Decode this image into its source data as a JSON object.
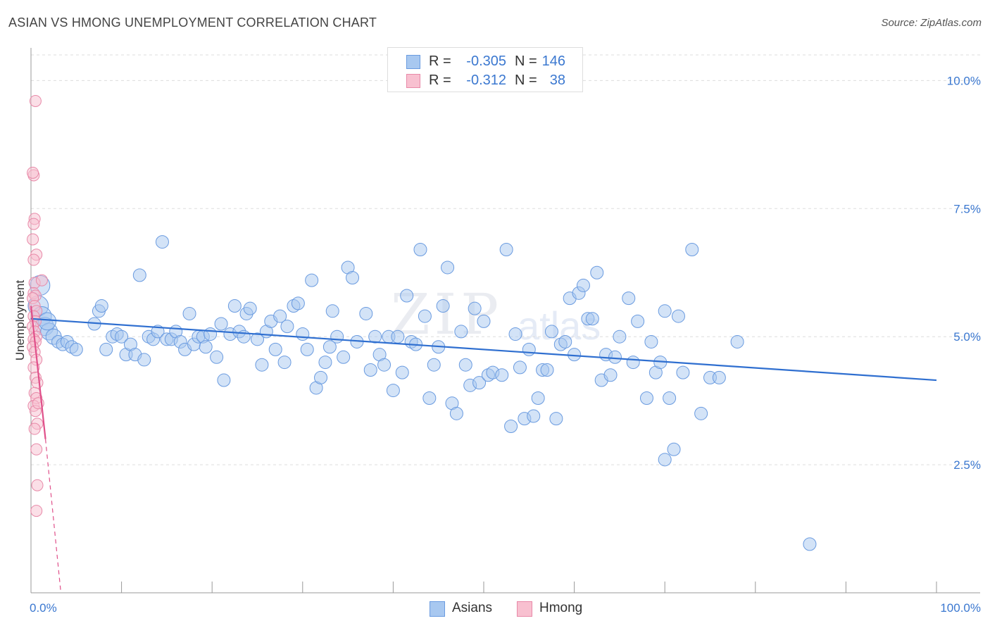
{
  "title": "ASIAN VS HMONG UNEMPLOYMENT CORRELATION CHART",
  "source": "Source: ZipAtlas.com",
  "watermark": {
    "main": "ZIP",
    "sub": "atlas"
  },
  "legend": {
    "rows": [
      {
        "r_label": "R =",
        "r": "-0.305",
        "n_label": "N =",
        "n": "146",
        "color": "#a8c8f0",
        "border": "#6a9be0"
      },
      {
        "r_label": "R =",
        "r": "-0.312",
        "n_label": "N =",
        "n": "38",
        "color": "#f8c0d0",
        "border": "#e889a8"
      }
    ]
  },
  "bottom_legend": [
    {
      "label": "Asians",
      "color": "#a8c8f0",
      "border": "#6a9be0"
    },
    {
      "label": "Hmong",
      "color": "#f8c0d0",
      "border": "#e889a8"
    }
  ],
  "chart_data": {
    "type": "scatter",
    "title": "ASIAN VS HMONG UNEMPLOYMENT CORRELATION CHART",
    "ylabel": "Unemployment",
    "xlabel": "",
    "xlim": [
      0,
      100
    ],
    "ylim": [
      0,
      10.5
    ],
    "x_tick_labels": [
      "0.0%",
      "100.0%"
    ],
    "y_ticks": [
      2.5,
      5.0,
      7.5,
      10.0
    ],
    "y_tick_labels": [
      "2.5%",
      "5.0%",
      "7.5%",
      "10.0%"
    ],
    "grid": true,
    "legend_position": "top-center",
    "colors": {
      "asians": "#6a9be0",
      "asians_line": "#2f6fd0",
      "hmong": "#e889a8",
      "hmong_line": "#e0508a"
    },
    "series": [
      {
        "name": "Asians",
        "trend": {
          "x": [
            0,
            100
          ],
          "y": [
            5.35,
            4.15
          ]
        },
        "points": [
          [
            0.8,
            5.6
          ],
          [
            1.2,
            5.4
          ],
          [
            1.5,
            5.2
          ],
          [
            2.0,
            5.1
          ],
          [
            2.5,
            5.0
          ],
          [
            3.0,
            4.9
          ],
          [
            3.5,
            4.85
          ],
          [
            4.0,
            4.9
          ],
          [
            4.5,
            4.8
          ],
          [
            5.0,
            4.75
          ],
          [
            1.0,
            6.0
          ],
          [
            1.8,
            5.3
          ],
          [
            7.0,
            5.25
          ],
          [
            7.5,
            5.5
          ],
          [
            7.8,
            5.6
          ],
          [
            8.3,
            4.75
          ],
          [
            9.0,
            5.0
          ],
          [
            9.5,
            5.05
          ],
          [
            10.0,
            5.0
          ],
          [
            10.5,
            4.65
          ],
          [
            11.0,
            4.85
          ],
          [
            11.5,
            4.65
          ],
          [
            12.0,
            6.2
          ],
          [
            12.5,
            4.55
          ],
          [
            13.0,
            5.0
          ],
          [
            13.5,
            4.95
          ],
          [
            14.0,
            5.1
          ],
          [
            14.5,
            6.85
          ],
          [
            15.0,
            4.95
          ],
          [
            15.5,
            4.95
          ],
          [
            16.0,
            5.1
          ],
          [
            16.5,
            4.9
          ],
          [
            17.0,
            4.75
          ],
          [
            17.5,
            5.45
          ],
          [
            18.0,
            4.85
          ],
          [
            18.5,
            5.0
          ],
          [
            19.0,
            5.0
          ],
          [
            19.3,
            4.8
          ],
          [
            19.8,
            5.05
          ],
          [
            20.5,
            4.6
          ],
          [
            21.0,
            5.25
          ],
          [
            21.3,
            4.15
          ],
          [
            22.0,
            5.05
          ],
          [
            22.5,
            5.6
          ],
          [
            23.0,
            5.1
          ],
          [
            23.5,
            5.0
          ],
          [
            23.8,
            5.45
          ],
          [
            24.2,
            5.55
          ],
          [
            25.0,
            4.95
          ],
          [
            25.5,
            4.45
          ],
          [
            26.0,
            5.1
          ],
          [
            26.5,
            5.3
          ],
          [
            27.0,
            4.75
          ],
          [
            27.5,
            5.4
          ],
          [
            28.0,
            4.5
          ],
          [
            28.3,
            5.2
          ],
          [
            29.0,
            5.6
          ],
          [
            29.5,
            5.65
          ],
          [
            30.0,
            5.05
          ],
          [
            30.5,
            4.75
          ],
          [
            31.0,
            6.1
          ],
          [
            31.5,
            4.0
          ],
          [
            32.0,
            4.2
          ],
          [
            32.5,
            4.5
          ],
          [
            33.0,
            4.8
          ],
          [
            33.3,
            5.5
          ],
          [
            33.8,
            5.0
          ],
          [
            34.5,
            4.6
          ],
          [
            35.0,
            6.35
          ],
          [
            35.5,
            6.15
          ],
          [
            36.0,
            4.9
          ],
          [
            37.0,
            5.45
          ],
          [
            37.5,
            4.35
          ],
          [
            38.0,
            5.0
          ],
          [
            38.5,
            4.65
          ],
          [
            39.0,
            4.45
          ],
          [
            39.5,
            5.0
          ],
          [
            40.0,
            3.95
          ],
          [
            40.5,
            5.0
          ],
          [
            41.0,
            4.3
          ],
          [
            41.5,
            5.8
          ],
          [
            42.0,
            4.9
          ],
          [
            42.5,
            4.85
          ],
          [
            43.0,
            6.7
          ],
          [
            43.5,
            5.4
          ],
          [
            44.0,
            3.8
          ],
          [
            44.5,
            4.45
          ],
          [
            45.0,
            4.8
          ],
          [
            45.5,
            5.6
          ],
          [
            46.0,
            6.35
          ],
          [
            46.5,
            3.7
          ],
          [
            47.0,
            3.5
          ],
          [
            47.5,
            5.1
          ],
          [
            48.0,
            4.45
          ],
          [
            48.5,
            4.05
          ],
          [
            49.0,
            5.55
          ],
          [
            49.5,
            4.1
          ],
          [
            50.0,
            5.3
          ],
          [
            50.5,
            4.25
          ],
          [
            51.0,
            4.3
          ],
          [
            52.0,
            4.25
          ],
          [
            52.5,
            6.7
          ],
          [
            53.0,
            3.25
          ],
          [
            53.5,
            5.05
          ],
          [
            54.0,
            4.4
          ],
          [
            54.5,
            3.4
          ],
          [
            55.0,
            4.75
          ],
          [
            55.5,
            3.45
          ],
          [
            56.0,
            3.8
          ],
          [
            56.5,
            4.35
          ],
          [
            57.0,
            4.35
          ],
          [
            57.5,
            5.1
          ],
          [
            58.0,
            3.4
          ],
          [
            58.5,
            4.85
          ],
          [
            59.0,
            4.9
          ],
          [
            59.5,
            5.75
          ],
          [
            60.0,
            4.65
          ],
          [
            60.5,
            5.85
          ],
          [
            61.0,
            6.0
          ],
          [
            61.5,
            5.35
          ],
          [
            62.0,
            5.35
          ],
          [
            62.5,
            6.25
          ],
          [
            63.0,
            4.15
          ],
          [
            63.5,
            4.65
          ],
          [
            64.0,
            4.25
          ],
          [
            64.5,
            4.6
          ],
          [
            65.0,
            5.0
          ],
          [
            66.0,
            5.75
          ],
          [
            66.5,
            4.5
          ],
          [
            67.0,
            5.3
          ],
          [
            68.0,
            3.8
          ],
          [
            68.5,
            4.9
          ],
          [
            69.0,
            4.3
          ],
          [
            69.5,
            4.5
          ],
          [
            70.0,
            5.5
          ],
          [
            70.5,
            3.8
          ],
          [
            71.0,
            2.8
          ],
          [
            71.5,
            5.4
          ],
          [
            72.0,
            4.3
          ],
          [
            73.0,
            6.7
          ],
          [
            74.0,
            3.5
          ],
          [
            75.0,
            4.2
          ],
          [
            76.0,
            4.2
          ],
          [
            78.0,
            4.9
          ],
          [
            86.0,
            0.95
          ],
          [
            70.0,
            2.6
          ]
        ]
      },
      {
        "name": "Hmong",
        "trend": {
          "x": [
            0,
            1.6
          ],
          "y": [
            5.6,
            3.0
          ],
          "extension": {
            "x": [
              1.6,
              3.3
            ],
            "y": [
              3.0,
              0.0
            ]
          }
        },
        "points": [
          [
            0.5,
            9.6
          ],
          [
            0.3,
            8.15
          ],
          [
            0.2,
            8.2
          ],
          [
            0.4,
            7.3
          ],
          [
            0.3,
            7.2
          ],
          [
            0.2,
            6.9
          ],
          [
            0.6,
            6.6
          ],
          [
            0.3,
            6.5
          ],
          [
            0.4,
            6.05
          ],
          [
            1.2,
            6.1
          ],
          [
            0.3,
            5.85
          ],
          [
            0.5,
            5.8
          ],
          [
            0.2,
            5.75
          ],
          [
            0.4,
            5.6
          ],
          [
            0.6,
            5.5
          ],
          [
            0.3,
            5.4
          ],
          [
            0.5,
            5.3
          ],
          [
            0.2,
            5.2
          ],
          [
            0.4,
            5.1
          ],
          [
            0.6,
            5.0
          ],
          [
            0.3,
            4.95
          ],
          [
            0.5,
            4.9
          ],
          [
            0.2,
            4.8
          ],
          [
            0.4,
            4.7
          ],
          [
            0.6,
            4.55
          ],
          [
            0.3,
            4.4
          ],
          [
            0.5,
            4.2
          ],
          [
            0.7,
            4.1
          ],
          [
            0.4,
            3.9
          ],
          [
            0.6,
            3.8
          ],
          [
            0.3,
            3.65
          ],
          [
            0.5,
            3.55
          ],
          [
            0.7,
            3.3
          ],
          [
            0.4,
            3.2
          ],
          [
            0.6,
            2.8
          ],
          [
            0.8,
            3.7
          ],
          [
            0.7,
            2.1
          ],
          [
            0.6,
            1.6
          ]
        ]
      }
    ]
  }
}
